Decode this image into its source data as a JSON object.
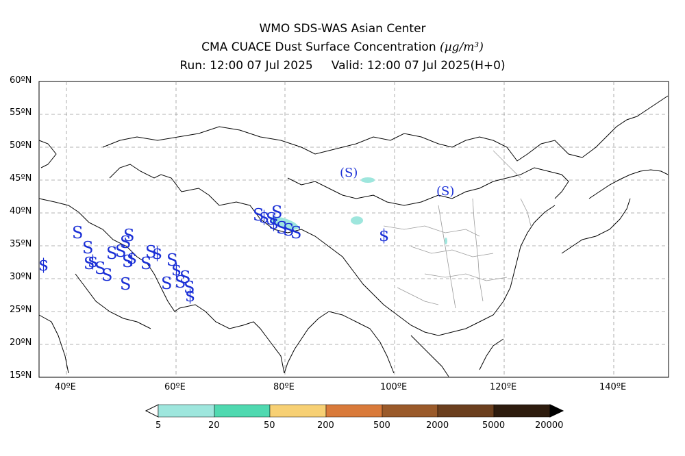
{
  "header": {
    "line1": "WMO SDS-WAS Asian Center",
    "line2_text": "CMA CUACE Dust Surface Concentration ",
    "line2_unit": "(µg/m³)",
    "run_label": "Run: 12:00 07 Jul 2025",
    "valid_label": "Valid: 12:00 07 Jul 2025(H+0)"
  },
  "map": {
    "lon_range": [
      35,
      150
    ],
    "lat_range": [
      15,
      60
    ],
    "lat_ticks": [
      "15ºN",
      "20ºN",
      "25ºN",
      "30ºN",
      "35ºN",
      "40ºN",
      "45ºN",
      "50ºN",
      "55ºN",
      "60ºN"
    ],
    "lon_ticks": [
      "40ºE",
      "60ºE",
      "80ºE",
      "100ºE",
      "120ºE",
      "140ºE"
    ],
    "grid": true,
    "dust_symbol": "S",
    "dust_symbol_color": "#1a2fd6",
    "dust_fill_color": "#9ee6dd"
  },
  "colorbar": {
    "labels": [
      "5",
      "20",
      "50",
      "200",
      "500",
      "2000",
      "5000",
      "20000"
    ],
    "colors": [
      "#9ee6dd",
      "#4fd9b0",
      "#f7d074",
      "#d97a3a",
      "#9a5a2a",
      "#6b3f1e",
      "#2e1c0e"
    ]
  }
}
